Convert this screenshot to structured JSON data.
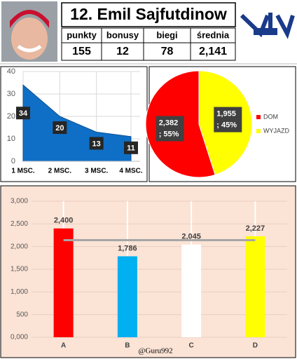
{
  "header": {
    "title": "12. Emil Sajfutdinow"
  },
  "stats": {
    "columns": [
      "punkty",
      "bonusy",
      "biegi",
      "średnia"
    ],
    "values": [
      "155",
      "12",
      "78",
      "2,141"
    ]
  },
  "chart_data": [
    {
      "type": "area",
      "categories": [
        "1 MSC.",
        "2 MSC.",
        "3 MSC.",
        "4 MSC."
      ],
      "values": [
        34,
        20,
        13,
        11
      ],
      "color": "#0f6fc6",
      "ylim": [
        0,
        40
      ],
      "yticks": [
        0,
        10,
        20,
        30,
        40
      ],
      "grid": true
    },
    {
      "type": "pie",
      "categories": [
        "DOM",
        "WYJAZD"
      ],
      "values": [
        2382,
        1955
      ],
      "value_labels": [
        "2,382",
        "1,955"
      ],
      "percent_labels": [
        "; 55%",
        "; 45%"
      ],
      "colors": [
        "#ff0000",
        "#ffff00"
      ],
      "legend": "right"
    },
    {
      "type": "bar",
      "categories": [
        "A",
        "B",
        "C",
        "D"
      ],
      "values": [
        2400,
        1786,
        2045,
        2227
      ],
      "value_labels": [
        "2,400",
        "1,786",
        "2,045",
        "2,227"
      ],
      "colors": [
        "#ff0000",
        "#00b0f0",
        "#ffffff",
        "#ffff00"
      ],
      "line": {
        "values": [
          2141,
          2141,
          2141,
          2141
        ],
        "color": "#a6a6a6"
      },
      "ylim": [
        0,
        3000
      ],
      "yticks": [
        {
          "value": 0,
          "label": "0,000"
        },
        500,
        {
          "value": 1000,
          "label": "1,000"
        },
        {
          "value": 1500,
          "label": "1,500"
        },
        {
          "value": 2000,
          "label": "2,000"
        },
        {
          "value": 2500,
          "label": "2,500"
        },
        {
          "value": 3000,
          "label": "3,000"
        }
      ],
      "grid": true
    }
  ],
  "credit": "@Guru992"
}
